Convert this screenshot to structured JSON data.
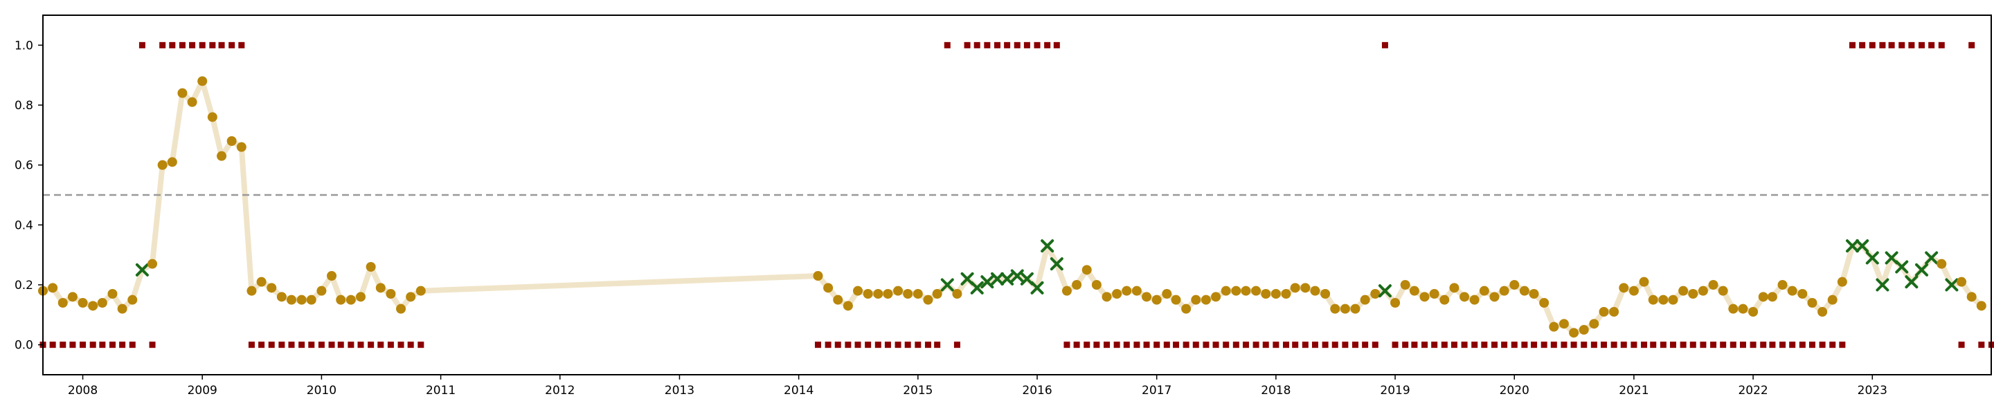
{
  "chart_data": {
    "type": "scatter",
    "title": "",
    "xlabel": "",
    "ylabel": "",
    "xlim": [
      "2007-09-01",
      "2023-12-31"
    ],
    "ylim": [
      -0.1,
      1.1
    ],
    "grid": false,
    "legend": "none",
    "x_tick_labels": [
      "2008",
      "2009",
      "2010",
      "2011",
      "2012",
      "2013",
      "2014",
      "2015",
      "2016",
      "2017",
      "2018",
      "2019",
      "2020",
      "2021",
      "2022",
      "2023"
    ],
    "y_tick_labels": [
      "0.0",
      "0.2",
      "0.4",
      "0.6",
      "0.8",
      "1.0"
    ],
    "y_ticks": [
      0.0,
      0.2,
      0.4,
      0.6,
      0.8,
      1.0
    ],
    "threshold": 0.5,
    "colors": {
      "line": "#f0e4c8",
      "point": "#b8860b",
      "cross": "#1a6b1a",
      "label_marker": "#8b0000",
      "threshold": "#999999"
    },
    "series": [
      {
        "marker": "circle-and-cross",
        "x": [
          "2007-09-01",
          "2007-10-01",
          "2007-11-01",
          "2007-12-01",
          "2008-01-01",
          "2008-02-01",
          "2008-03-01",
          "2008-04-01",
          "2008-05-01",
          "2008-06-01",
          "2008-07-01",
          "2008-08-01",
          "2008-09-01",
          "2008-10-01",
          "2008-11-01",
          "2008-12-01",
          "2009-01-01",
          "2009-02-01",
          "2009-03-01",
          "2009-04-01",
          "2009-05-01",
          "2009-06-01",
          "2009-07-01",
          "2009-08-01",
          "2009-09-01",
          "2009-10-01",
          "2009-11-01",
          "2009-12-01",
          "2010-01-01",
          "2010-02-01",
          "2010-03-01",
          "2010-04-01",
          "2010-05-01",
          "2010-06-01",
          "2010-07-01",
          "2010-08-01",
          "2010-09-01",
          "2010-10-01",
          "2010-11-01",
          "2014-03-01",
          "2014-04-01",
          "2014-05-01",
          "2014-06-01",
          "2014-07-01",
          "2014-08-01",
          "2014-09-01",
          "2014-10-01",
          "2014-11-01",
          "2014-12-01",
          "2015-01-01",
          "2015-02-01",
          "2015-03-01",
          "2015-04-01",
          "2015-05-01",
          "2015-06-01",
          "2015-07-01",
          "2015-08-01",
          "2015-09-01",
          "2015-10-01",
          "2015-11-01",
          "2015-12-01",
          "2016-01-01",
          "2016-02-01",
          "2016-03-01",
          "2016-04-01",
          "2016-05-01",
          "2016-06-01",
          "2016-07-01",
          "2016-08-01",
          "2016-09-01",
          "2016-10-01",
          "2016-11-01",
          "2016-12-01",
          "2017-01-01",
          "2017-02-01",
          "2017-03-01",
          "2017-04-01",
          "2017-05-01",
          "2017-06-01",
          "2017-07-01",
          "2017-08-01",
          "2017-09-01",
          "2017-10-01",
          "2017-11-01",
          "2017-12-01",
          "2018-01-01",
          "2018-02-01",
          "2018-03-01",
          "2018-04-01",
          "2018-05-01",
          "2018-06-01",
          "2018-07-01",
          "2018-08-01",
          "2018-09-01",
          "2018-10-01",
          "2018-11-01",
          "2018-12-01",
          "2019-01-01",
          "2019-02-01",
          "2019-03-01",
          "2019-04-01",
          "2019-05-01",
          "2019-06-01",
          "2019-07-01",
          "2019-08-01",
          "2019-09-01",
          "2019-10-01",
          "2019-11-01",
          "2019-12-01",
          "2020-01-01",
          "2020-02-01",
          "2020-03-01",
          "2020-04-01",
          "2020-05-01",
          "2020-06-01",
          "2020-07-01",
          "2020-08-01",
          "2020-09-01",
          "2020-10-01",
          "2020-11-01",
          "2020-12-01",
          "2021-01-01",
          "2021-02-01",
          "2021-03-01",
          "2021-04-01",
          "2021-05-01",
          "2021-06-01",
          "2021-07-01",
          "2021-08-01",
          "2021-09-01",
          "2021-10-01",
          "2021-11-01",
          "2021-12-01",
          "2022-01-01",
          "2022-02-01",
          "2022-03-01",
          "2022-04-01",
          "2022-05-01",
          "2022-06-01",
          "2022-07-01",
          "2022-08-01",
          "2022-09-01",
          "2022-10-01",
          "2022-11-01",
          "2022-12-01",
          "2023-01-01",
          "2023-02-01",
          "2023-03-01",
          "2023-04-01",
          "2023-05-01",
          "2023-06-01",
          "2023-07-01",
          "2023-08-01",
          "2023-09-01",
          "2023-10-01",
          "2023-11-01",
          "2023-12-01"
        ],
        "y": [
          0.18,
          0.19,
          0.14,
          0.16,
          0.14,
          0.13,
          0.14,
          0.17,
          0.12,
          0.15,
          0.25,
          0.27,
          0.6,
          0.61,
          0.84,
          0.81,
          0.88,
          0.76,
          0.63,
          0.68,
          0.66,
          0.18,
          0.21,
          0.19,
          0.16,
          0.15,
          0.15,
          0.15,
          0.18,
          0.23,
          0.15,
          0.15,
          0.16,
          0.26,
          0.19,
          0.17,
          0.12,
          0.16,
          0.18,
          0.23,
          0.19,
          0.15,
          0.13,
          0.18,
          0.17,
          0.17,
          0.17,
          0.18,
          0.17,
          0.17,
          0.15,
          0.17,
          0.2,
          0.17,
          0.22,
          0.19,
          0.21,
          0.22,
          0.22,
          0.23,
          0.22,
          0.19,
          0.33,
          0.27,
          0.18,
          0.2,
          0.25,
          0.2,
          0.16,
          0.17,
          0.18,
          0.18,
          0.16,
          0.15,
          0.17,
          0.15,
          0.12,
          0.15,
          0.15,
          0.16,
          0.18,
          0.18,
          0.18,
          0.18,
          0.17,
          0.17,
          0.17,
          0.19,
          0.19,
          0.18,
          0.17,
          0.12,
          0.12,
          0.12,
          0.15,
          0.17,
          0.18,
          0.14,
          0.2,
          0.18,
          0.16,
          0.17,
          0.15,
          0.19,
          0.16,
          0.15,
          0.18,
          0.16,
          0.18,
          0.2,
          0.18,
          0.17,
          0.14,
          0.06,
          0.07,
          0.04,
          0.05,
          0.07,
          0.11,
          0.11,
          0.19,
          0.18,
          0.21,
          0.15,
          0.15,
          0.15,
          0.18,
          0.17,
          0.18,
          0.2,
          0.18,
          0.12,
          0.12,
          0.11,
          0.16,
          0.16,
          0.2,
          0.18,
          0.17,
          0.14,
          0.11,
          0.15,
          0.21,
          0.33,
          0.33,
          0.29,
          0.2,
          0.29,
          0.26,
          0.21,
          0.25,
          0.29,
          0.27,
          0.2,
          0.21,
          0.16,
          0.13
        ],
        "cross_x": [
          "2008-07-01",
          "2015-04-01",
          "2015-06-01",
          "2015-07-01",
          "2015-08-01",
          "2015-09-01",
          "2015-10-01",
          "2015-11-01",
          "2015-12-01",
          "2016-01-01",
          "2016-02-01",
          "2016-03-01",
          "2018-12-01",
          "2022-11-01",
          "2022-12-01",
          "2023-01-01",
          "2023-02-01",
          "2023-03-01",
          "2023-04-01",
          "2023-05-01",
          "2023-06-01",
          "2023-07-01",
          "2023-09-01"
        ]
      },
      {
        "marker": "square",
        "x_zero": [
          "2007-09-01",
          "2007-10-01",
          "2007-11-01",
          "2007-12-01",
          "2008-01-01",
          "2008-02-01",
          "2008-03-01",
          "2008-04-01",
          "2008-05-01",
          "2008-06-01",
          "2008-08-01",
          "2009-06-01",
          "2009-07-01",
          "2009-08-01",
          "2009-09-01",
          "2009-10-01",
          "2009-11-01",
          "2009-12-01",
          "2010-01-01",
          "2010-02-01",
          "2010-03-01",
          "2010-04-01",
          "2010-05-01",
          "2010-06-01",
          "2010-07-01",
          "2010-08-01",
          "2010-09-01",
          "2010-10-01",
          "2010-11-01",
          "2014-03-01",
          "2014-04-01",
          "2014-05-01",
          "2014-06-01",
          "2014-07-01",
          "2014-08-01",
          "2014-09-01",
          "2014-10-01",
          "2014-11-01",
          "2014-12-01",
          "2015-01-01",
          "2015-02-01",
          "2015-03-01",
          "2015-05-01",
          "2016-04-01",
          "2016-05-01",
          "2016-06-01",
          "2016-07-01",
          "2016-08-01",
          "2016-09-01",
          "2016-10-01",
          "2016-11-01",
          "2016-12-01",
          "2017-01-01",
          "2017-02-01",
          "2017-03-01",
          "2017-04-01",
          "2017-05-01",
          "2017-06-01",
          "2017-07-01",
          "2017-08-01",
          "2017-09-01",
          "2017-10-01",
          "2017-11-01",
          "2017-12-01",
          "2018-01-01",
          "2018-02-01",
          "2018-03-01",
          "2018-04-01",
          "2018-05-01",
          "2018-06-01",
          "2018-07-01",
          "2018-08-01",
          "2018-09-01",
          "2018-10-01",
          "2018-11-01",
          "2019-01-01",
          "2019-02-01",
          "2019-03-01",
          "2019-04-01",
          "2019-05-01",
          "2019-06-01",
          "2019-07-01",
          "2019-08-01",
          "2019-09-01",
          "2019-10-01",
          "2019-11-01",
          "2019-12-01",
          "2020-01-01",
          "2020-02-01",
          "2020-03-01",
          "2020-04-01",
          "2020-05-01",
          "2020-06-01",
          "2020-07-01",
          "2020-08-01",
          "2020-09-01",
          "2020-10-01",
          "2020-11-01",
          "2020-12-01",
          "2021-01-01",
          "2021-02-01",
          "2021-03-01",
          "2021-04-01",
          "2021-05-01",
          "2021-06-01",
          "2021-07-01",
          "2021-08-01",
          "2021-09-01",
          "2021-10-01",
          "2021-11-01",
          "2021-12-01",
          "2022-01-01",
          "2022-02-01",
          "2022-03-01",
          "2022-04-01",
          "2022-05-01",
          "2022-06-01",
          "2022-07-01",
          "2022-08-01",
          "2022-09-01",
          "2022-10-01",
          "2023-10-01",
          "2023-12-01",
          "2024-01-01"
        ],
        "x_one": [
          "2008-07-01",
          "2008-09-01",
          "2008-10-01",
          "2008-11-01",
          "2008-12-01",
          "2009-01-01",
          "2009-02-01",
          "2009-03-01",
          "2009-04-01",
          "2009-05-01",
          "2015-04-01",
          "2015-06-01",
          "2015-07-01",
          "2015-08-01",
          "2015-09-01",
          "2015-10-01",
          "2015-11-01",
          "2015-12-01",
          "2016-01-01",
          "2016-02-01",
          "2016-03-01",
          "2018-12-01",
          "2022-11-01",
          "2022-12-01",
          "2023-01-01",
          "2023-02-01",
          "2023-03-01",
          "2023-04-01",
          "2023-05-01",
          "2023-06-01",
          "2023-07-01",
          "2023-08-01",
          "2023-11-01"
        ]
      }
    ]
  }
}
